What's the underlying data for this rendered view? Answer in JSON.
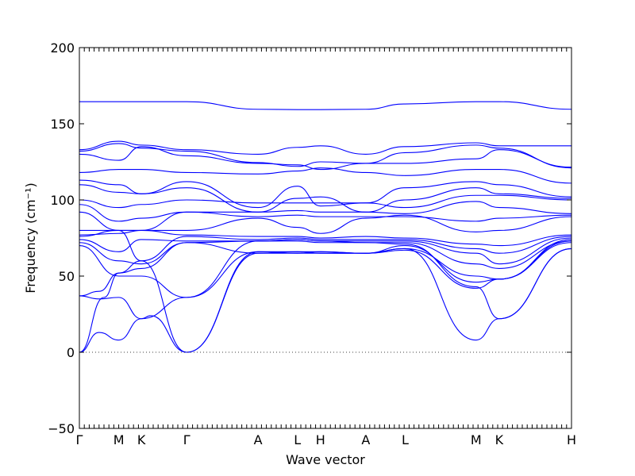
{
  "chart_data": {
    "type": "line",
    "title": "",
    "xlabel": "Wave vector",
    "ylabel": "Frequency (cm⁻¹)",
    "ylim": [
      -50,
      200
    ],
    "yticks": [
      -50,
      0,
      50,
      100,
      150,
      200
    ],
    "ytick_labels": [
      "−50",
      "0",
      "50",
      "100",
      "150",
      "200"
    ],
    "xlim": [
      0,
      1
    ],
    "high_symmetry_points": [
      {
        "label": "Γ",
        "x": 0.0
      },
      {
        "label": "M",
        "x": 0.08
      },
      {
        "label": "K",
        "x": 0.126
      },
      {
        "label": "Γ",
        "x": 0.218
      },
      {
        "label": "A",
        "x": 0.363
      },
      {
        "label": "L",
        "x": 0.443
      },
      {
        "label": "H",
        "x": 0.49
      },
      {
        "label": "A",
        "x": 0.582
      },
      {
        "label": "L",
        "x": 0.662
      },
      {
        "label": "M",
        "x": 0.806
      },
      {
        "label": "K",
        "x": 0.853
      },
      {
        "label": "H",
        "x": 1.0
      }
    ],
    "grid": false,
    "zero_line": true,
    "series_color": "#0000ff",
    "series": [
      {
        "x": [
          0,
          0.08,
          0.126,
          0.218,
          0.363,
          0.443,
          0.49,
          0.582,
          0.662,
          0.806,
          0.853,
          1.0
        ],
        "values": [
          164.5,
          164.5,
          164.5,
          164.5,
          159.5,
          159.3,
          159.3,
          159.5,
          163,
          164.5,
          164.5,
          159.5
        ]
      },
      {
        "x": [
          0,
          0.08,
          0.126,
          0.218,
          0.363,
          0.443,
          0.49,
          0.582,
          0.662,
          0.806,
          0.853,
          1.0
        ],
        "values": [
          133,
          138.5,
          136,
          133,
          130,
          134.5,
          135.5,
          130,
          135,
          137.5,
          135.5,
          135.5
        ]
      },
      {
        "x": [
          0,
          0.08,
          0.126,
          0.218,
          0.363,
          0.443,
          0.49,
          0.582,
          0.662,
          0.806,
          0.853,
          1.0
        ],
        "values": [
          132,
          137,
          134,
          132,
          124.5,
          122,
          125,
          124,
          131,
          136,
          134,
          121
        ]
      },
      {
        "x": [
          0,
          0.08,
          0.126,
          0.218,
          0.363,
          0.443,
          0.49,
          0.582,
          0.662,
          0.806,
          0.853,
          1.0
        ],
        "values": [
          130,
          126,
          135,
          129,
          124,
          123,
          120,
          124,
          124,
          127,
          133,
          121.5
        ]
      },
      {
        "x": [
          0,
          0.08,
          0.126,
          0.218,
          0.363,
          0.443,
          0.49,
          0.582,
          0.662,
          0.806,
          0.853,
          1.0
        ],
        "values": [
          118,
          120,
          120,
          118,
          117,
          119,
          121,
          118,
          116,
          120,
          120,
          111
        ]
      },
      {
        "x": [
          0,
          0.08,
          0.126,
          0.218,
          0.363,
          0.443,
          0.49,
          0.582,
          0.662,
          0.806,
          0.853,
          1.0
        ],
        "values": [
          113,
          110,
          104,
          112,
          95,
          109,
          96,
          98,
          108,
          112,
          110,
          102
        ]
      },
      {
        "x": [
          0,
          0.08,
          0.126,
          0.218,
          0.363,
          0.443,
          0.49,
          0.582,
          0.662,
          0.806,
          0.853,
          1.0
        ],
        "values": [
          110,
          105,
          104,
          108,
          92,
          101,
          102,
          92,
          100,
          108,
          104,
          101
        ]
      },
      {
        "x": [
          0,
          0.08,
          0.126,
          0.218,
          0.363,
          0.443,
          0.49,
          0.582,
          0.662,
          0.806,
          0.853,
          1.0
        ],
        "values": [
          100,
          95,
          97,
          100,
          98,
          98,
          98,
          98,
          95,
          103,
          103,
          100
        ]
      },
      {
        "x": [
          0,
          0.08,
          0.126,
          0.218,
          0.363,
          0.443,
          0.49,
          0.582,
          0.662,
          0.806,
          0.853,
          1.0
        ],
        "values": [
          97,
          86,
          88,
          92,
          92,
          93,
          92,
          92,
          91,
          99,
          95,
          91
        ]
      },
      {
        "x": [
          0,
          0.08,
          0.126,
          0.218,
          0.363,
          0.443,
          0.49,
          0.582,
          0.662,
          0.806,
          0.853,
          1.0
        ],
        "values": [
          92,
          80,
          80,
          92,
          89,
          90,
          89,
          89,
          89,
          86,
          88,
          90
        ]
      },
      {
        "x": [
          0,
          0.08,
          0.126,
          0.218,
          0.363,
          0.443,
          0.49,
          0.582,
          0.662,
          0.806,
          0.853,
          1.0
        ],
        "values": [
          80,
          80,
          80,
          80,
          88,
          82,
          78,
          88,
          90,
          79,
          80,
          89
        ]
      },
      {
        "x": [
          0,
          0.08,
          0.126,
          0.218,
          0.363,
          0.443,
          0.49,
          0.582,
          0.662,
          0.806,
          0.853,
          1.0
        ],
        "values": [
          77,
          78,
          80,
          77,
          76,
          76,
          75,
          76,
          75,
          71,
          70,
          77
        ]
      },
      {
        "x": [
          0,
          0.08,
          0.126,
          0.218,
          0.363,
          0.443,
          0.49,
          0.582,
          0.662,
          0.806,
          0.853,
          1.0
        ],
        "values": [
          76,
          80,
          60,
          76,
          74,
          75,
          74,
          74,
          74,
          68,
          65,
          76
        ]
      },
      {
        "x": [
          0,
          0.08,
          0.126,
          0.218,
          0.363,
          0.443,
          0.49,
          0.582,
          0.662,
          0.806,
          0.853,
          1.0
        ],
        "values": [
          74,
          66,
          74,
          73,
          73,
          74,
          73,
          73,
          73,
          65,
          58,
          75
        ]
      },
      {
        "x": [
          0,
          0.08,
          0.126,
          0.218,
          0.363,
          0.443,
          0.49,
          0.582,
          0.662,
          0.806,
          0.853,
          1.0
        ],
        "values": [
          72,
          60,
          58,
          72,
          73,
          73,
          72,
          72,
          72,
          58,
          55,
          73
        ]
      },
      {
        "x": [
          0,
          0.08,
          0.126,
          0.218,
          0.363,
          0.443,
          0.49,
          0.582,
          0.662,
          0.806,
          0.853,
          1.0
        ],
        "values": [
          70,
          50,
          50,
          36,
          66,
          65,
          65,
          65,
          68,
          50,
          48,
          73
        ]
      },
      {
        "x": [
          0,
          0.04,
          0.08,
          0.126,
          0.218,
          0.363,
          0.443,
          0.49,
          0.582,
          0.662,
          0.806,
          0.853,
          1.0
        ],
        "values": [
          37,
          40,
          52,
          55,
          72,
          65,
          66,
          66,
          65,
          70,
          46,
          48,
          72
        ]
      },
      {
        "x": [
          0,
          0.04,
          0.08,
          0.126,
          0.218,
          0.363,
          0.443,
          0.49,
          0.582,
          0.662,
          0.806,
          0.853,
          1.0
        ],
        "values": [
          37,
          35,
          36,
          22,
          36,
          73,
          74,
          73,
          72,
          71,
          43,
          22,
          68
        ]
      },
      {
        "x": [
          0,
          0.04,
          0.08,
          0.126,
          0.145,
          0.218,
          0.363,
          0.443,
          0.49,
          0.582,
          0.662,
          0.806,
          0.853,
          1.0
        ],
        "values": [
          0,
          13,
          8,
          22,
          24,
          0,
          66,
          66,
          65,
          65,
          68,
          8,
          22,
          68
        ]
      },
      {
        "x": [
          0,
          0.05,
          0.08,
          0.126,
          0.218,
          0.363,
          0.443,
          0.49,
          0.582,
          0.662,
          0.806,
          0.853,
          1.0
        ],
        "values": [
          0,
          36,
          52,
          60,
          0,
          65,
          65,
          66,
          65,
          67,
          42,
          48,
          74
        ]
      }
    ]
  }
}
